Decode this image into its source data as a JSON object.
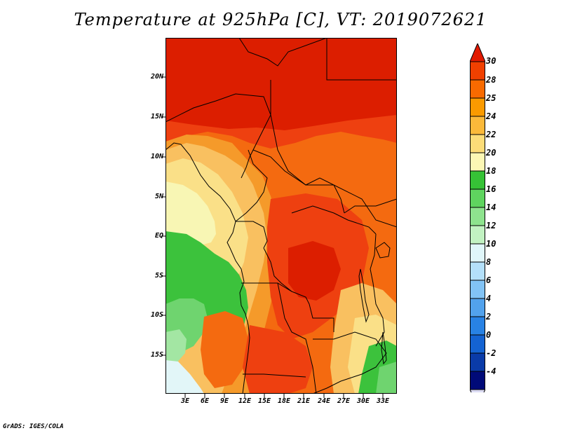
{
  "title": "Temperature at 925hPa [C], VT: 2019072621",
  "credit": "GrADS: IGES/COLA",
  "map": {
    "lat_labels": [
      "20N",
      "15N",
      "10N",
      "5N",
      "EQ",
      "5S",
      "10S",
      "15S"
    ],
    "lon_labels": [
      "3E",
      "6E",
      "9E",
      "12E",
      "15E",
      "18E",
      "21E",
      "24E",
      "27E",
      "30E",
      "33E"
    ]
  },
  "colorbar": {
    "labels": [
      "30",
      "28",
      "25",
      "24",
      "22",
      "20",
      "18",
      "16",
      "14",
      "12",
      "10",
      "8",
      "6",
      "4",
      "2",
      "0",
      "-2",
      "-4"
    ],
    "colors": [
      "#e21a00",
      "#f04000",
      "#f86a00",
      "#fa9a00",
      "#fbb93a",
      "#fcdc78",
      "#fcf7b4",
      "#36c236",
      "#5fd45f",
      "#8ee38e",
      "#c2f2c2",
      "#e0f6fa",
      "#b4e0fa",
      "#82c3f5",
      "#52a2ec",
      "#2882e4",
      "#1463d2",
      "#0a3ba8",
      "#000a78",
      "#dcdcf4"
    ]
  },
  "palette": {
    "t30": "#dc1e00",
    "t28": "#ee4010",
    "t25": "#f46a10",
    "t24": "#f59a2a",
    "t22": "#f9c060",
    "t20": "#fae088",
    "t18": "#f8f6b4",
    "t16": "#3cc23c",
    "t14": "#6fd46f",
    "t12": "#a3e6a3",
    "t10": "#e2f6f8"
  }
}
